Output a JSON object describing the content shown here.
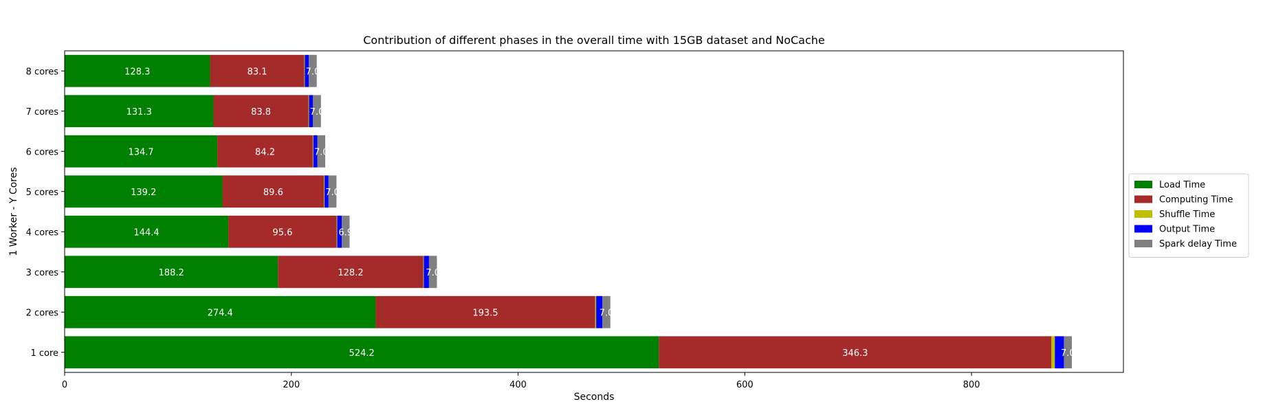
{
  "chart_data": {
    "type": "bar",
    "orientation": "horizontal",
    "stacked": true,
    "title": "Contribution of different phases in the overall time with 15GB dataset and NoCache",
    "xlabel": "Seconds",
    "ylabel": "1 Worker - Y Cores",
    "xlim": [
      0,
      934
    ],
    "xticks": [
      "0",
      "200",
      "400",
      "600",
      "800"
    ],
    "categories": [
      "1 core",
      "2 cores",
      "3 cores",
      "4 cores",
      "5 cores",
      "6 cores",
      "7 cores",
      "8 cores"
    ],
    "series": [
      {
        "name": "Load Time",
        "color": "#008000",
        "values": [
          524.2,
          274.4,
          188.2,
          144.4,
          139.2,
          134.7,
          131.3,
          128.3
        ],
        "labels": [
          "524.2",
          "274.4",
          "188.2",
          "144.4",
          "139.2",
          "134.7",
          "131.3",
          "128.3"
        ]
      },
      {
        "name": "Computing Time",
        "color": "#a52a2a",
        "values": [
          346.3,
          193.5,
          128.2,
          95.6,
          89.6,
          84.2,
          83.8,
          83.1
        ],
        "labels": [
          "346.3",
          "193.5",
          "128.2",
          "95.6",
          "89.6",
          "84.2",
          "83.8",
          "83.1"
        ]
      },
      {
        "name": "Shuffle Time",
        "color": "#bfbf00",
        "values": [
          3.0,
          1.0,
          0.5,
          0.5,
          0.5,
          0.5,
          0.5,
          0.5
        ],
        "labels": [
          "",
          "",
          "",
          "",
          "",
          "",
          "",
          ""
        ]
      },
      {
        "name": "Output Time",
        "color": "#0000ff",
        "values": [
          8.0,
          5.5,
          4.5,
          4.0,
          3.5,
          3.5,
          3.5,
          3.5
        ],
        "labels": [
          "",
          "",
          "",
          "",
          "",
          "",
          "",
          ""
        ]
      },
      {
        "name": "Spark delay Time",
        "color": "#808080",
        "values": [
          7.0,
          7.0,
          7.0,
          6.9,
          7.0,
          7.0,
          7.0,
          7.0
        ],
        "labels": [
          "7.0",
          "7.0",
          "7.0",
          "6.9",
          "7.0",
          "7.0",
          "7.0",
          "7.0"
        ]
      }
    ],
    "legend_position": "right"
  }
}
